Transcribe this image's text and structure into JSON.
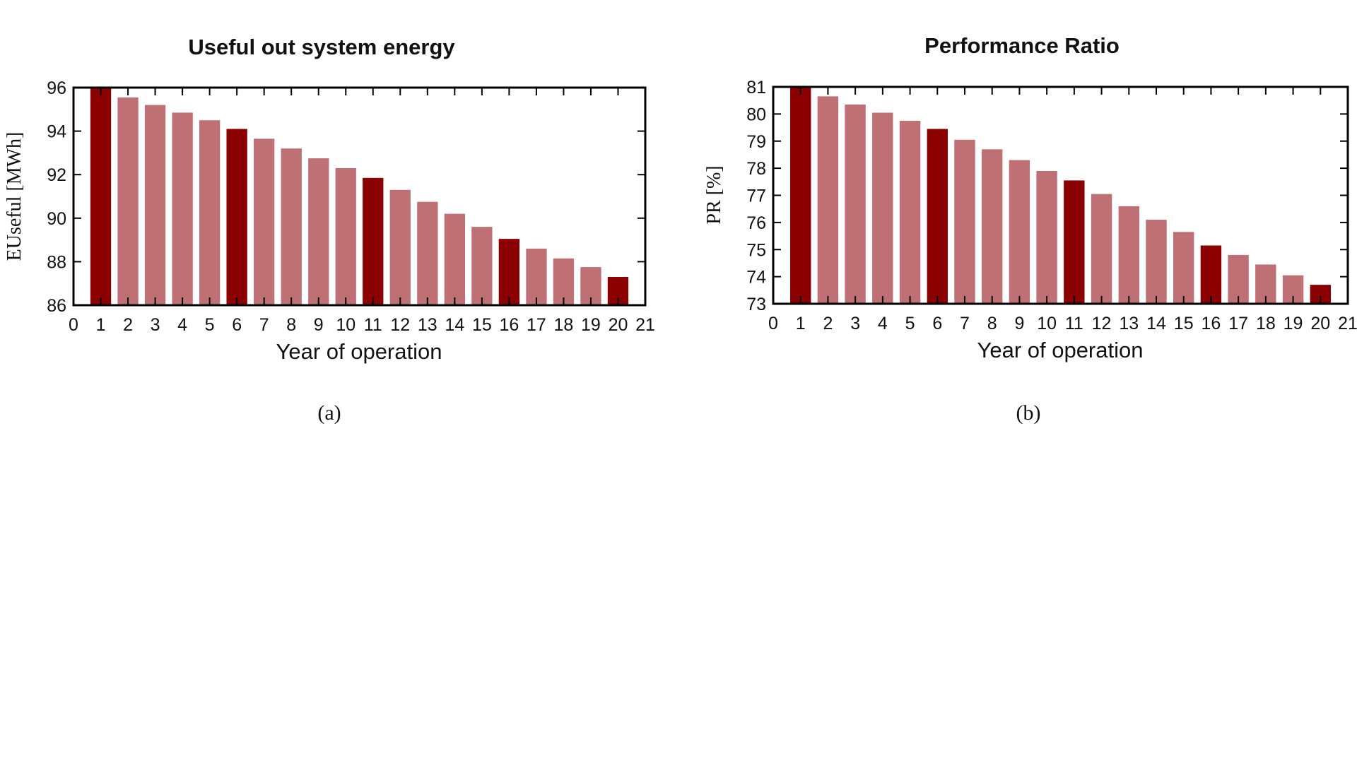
{
  "colors": {
    "highlight": "#8b0000",
    "normal": "#bf7074",
    "frame": "#000000"
  },
  "chart_data": [
    {
      "type": "bar",
      "title": "Useful out system energy",
      "xlabel": "Year of operation",
      "ylabel": "EUseful [MWh]",
      "caption": "(a)",
      "xlim": [
        0,
        21
      ],
      "ylim": [
        86,
        96
      ],
      "xticks": [
        0,
        1,
        2,
        3,
        4,
        5,
        6,
        7,
        8,
        9,
        10,
        11,
        12,
        13,
        14,
        15,
        16,
        17,
        18,
        19,
        20,
        21
      ],
      "yticks": [
        86,
        88,
        90,
        92,
        94,
        96
      ],
      "categories": [
        1,
        2,
        3,
        4,
        5,
        6,
        7,
        8,
        9,
        10,
        11,
        12,
        13,
        14,
        15,
        16,
        17,
        18,
        19,
        20
      ],
      "values": [
        96.0,
        95.55,
        95.2,
        94.85,
        94.5,
        94.1,
        93.65,
        93.2,
        92.75,
        92.3,
        91.85,
        91.3,
        90.75,
        90.2,
        89.6,
        89.05,
        88.6,
        88.15,
        87.75,
        87.3
      ],
      "highlighted_categories": [
        1,
        6,
        11,
        16,
        20
      ],
      "grid": false,
      "legend": "none"
    },
    {
      "type": "bar",
      "title": "Performance Ratio",
      "xlabel": "Year of operation",
      "ylabel": "PR [%]",
      "caption": "(b)",
      "xlim": [
        0,
        21
      ],
      "ylim": [
        73,
        81
      ],
      "xticks": [
        0,
        1,
        2,
        3,
        4,
        5,
        6,
        7,
        8,
        9,
        10,
        11,
        12,
        13,
        14,
        15,
        16,
        17,
        18,
        19,
        20,
        21
      ],
      "yticks": [
        73,
        74,
        75,
        76,
        77,
        78,
        79,
        80,
        81
      ],
      "categories": [
        1,
        2,
        3,
        4,
        5,
        6,
        7,
        8,
        9,
        10,
        11,
        12,
        13,
        14,
        15,
        16,
        17,
        18,
        19,
        20
      ],
      "values": [
        81.0,
        80.65,
        80.35,
        80.05,
        79.75,
        79.45,
        79.05,
        78.7,
        78.3,
        77.9,
        77.55,
        77.05,
        76.6,
        76.1,
        75.65,
        75.15,
        74.8,
        74.45,
        74.05,
        73.7
      ],
      "highlighted_categories": [
        1,
        6,
        11,
        16,
        20
      ],
      "grid": false,
      "legend": "none"
    }
  ]
}
